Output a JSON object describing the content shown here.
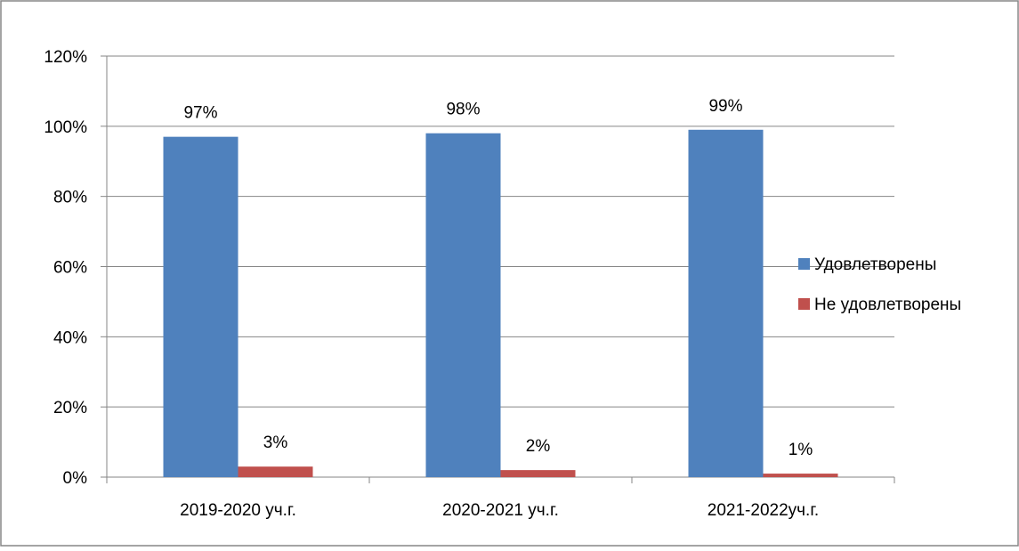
{
  "chart_data": {
    "type": "bar",
    "categories": [
      "2019-2020 уч.г.",
      "2020-2021 уч.г.",
      "2021-2022уч.г."
    ],
    "series": [
      {
        "name": "Удовлетворены",
        "values": [
          97,
          98,
          99
        ],
        "labels": [
          "97%",
          "98%",
          "99%"
        ],
        "color": "#4F81BD"
      },
      {
        "name": "Не удовлетворены",
        "values": [
          3,
          2,
          1
        ],
        "labels": [
          "3%",
          "2%",
          "1%"
        ],
        "color": "#C0504D"
      }
    ],
    "yticks": [
      0,
      20,
      40,
      60,
      80,
      100,
      120
    ],
    "ytick_labels": [
      "0%",
      "20%",
      "40%",
      "60%",
      "80%",
      "100%",
      "120%"
    ],
    "ylim": [
      0,
      120
    ],
    "grid": true,
    "legend_position": "right"
  }
}
